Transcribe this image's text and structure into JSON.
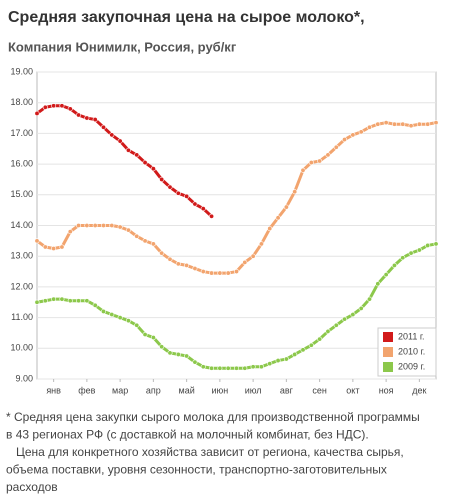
{
  "chart_data": {
    "type": "line",
    "title": "Средняя закупочная цена на сырое молоко*,",
    "subtitle": "Компания Юнимилк, Россия, руб/кг",
    "x": [
      0,
      0.25,
      0.5,
      0.75,
      1,
      1.25,
      1.5,
      1.75,
      2,
      2.25,
      2.5,
      2.75,
      3,
      3.25,
      3.5,
      3.75,
      4,
      4.25,
      4.5,
      4.75,
      5,
      5.25,
      5.5,
      5.75,
      6,
      6.25,
      6.5,
      6.75,
      7,
      7.25,
      7.5,
      7.75,
      8,
      8.25,
      8.5,
      8.75,
      9,
      9.25,
      9.5,
      9.75,
      10,
      10.25,
      10.5,
      10.75,
      11,
      11.25,
      11.5,
      11.75,
      12
    ],
    "xlim": [
      0,
      12
    ],
    "xticks": [
      {
        "value": 0.5,
        "label": "янв"
      },
      {
        "value": 1.5,
        "label": "фев"
      },
      {
        "value": 2.5,
        "label": "мар"
      },
      {
        "value": 3.5,
        "label": "апр"
      },
      {
        "value": 4.5,
        "label": "май"
      },
      {
        "value": 5.5,
        "label": "июн"
      },
      {
        "value": 6.5,
        "label": "июл"
      },
      {
        "value": 7.5,
        "label": "авг"
      },
      {
        "value": 8.5,
        "label": "сен"
      },
      {
        "value": 9.5,
        "label": "окт"
      },
      {
        "value": 10.5,
        "label": "ноя"
      },
      {
        "value": 11.5,
        "label": "дек"
      }
    ],
    "ylim": [
      9,
      19
    ],
    "yticks": [
      {
        "value": 9,
        "label": "9.00"
      },
      {
        "value": 10,
        "label": "10.00"
      },
      {
        "value": 11,
        "label": "11.00"
      },
      {
        "value": 12,
        "label": "12.00"
      },
      {
        "value": 13,
        "label": "13.00"
      },
      {
        "value": 14,
        "label": "14.00"
      },
      {
        "value": 15,
        "label": "15.00"
      },
      {
        "value": 16,
        "label": "16.00"
      },
      {
        "value": 17,
        "label": "17.00"
      },
      {
        "value": 18,
        "label": "18.00"
      },
      {
        "value": 19,
        "label": "19.00"
      }
    ],
    "grid": true,
    "legend": "lower-right",
    "series": [
      {
        "name": "2011 г.",
        "color": "#d11a1a",
        "values": [
          17.65,
          17.85,
          17.9,
          17.9,
          17.8,
          17.6,
          17.5,
          17.45,
          17.2,
          16.95,
          16.75,
          16.45,
          16.3,
          16.05,
          15.85,
          15.5,
          15.25,
          15.05,
          14.95,
          14.7,
          14.55,
          14.3,
          null,
          null,
          null,
          null,
          null,
          null,
          null,
          null,
          null,
          null,
          null,
          null,
          null,
          null,
          null,
          null,
          null,
          null,
          null,
          null,
          null,
          null,
          null,
          null,
          null,
          null,
          null
        ]
      },
      {
        "name": "2010 г.",
        "color": "#f2a46e",
        "values": [
          13.5,
          13.3,
          13.25,
          13.3,
          13.8,
          14.0,
          14.0,
          14.0,
          14.0,
          14.0,
          13.95,
          13.85,
          13.65,
          13.5,
          13.4,
          13.1,
          12.9,
          12.75,
          12.7,
          12.6,
          12.5,
          12.45,
          12.45,
          12.45,
          12.5,
          12.8,
          13.0,
          13.4,
          13.9,
          14.25,
          14.6,
          15.1,
          15.8,
          16.05,
          16.1,
          16.3,
          16.55,
          16.8,
          16.95,
          17.05,
          17.2,
          17.3,
          17.35,
          17.3,
          17.3,
          17.25,
          17.3,
          17.3,
          17.35
        ]
      },
      {
        "name": "2009 г.",
        "color": "#8cc84b",
        "values": [
          11.5,
          11.55,
          11.6,
          11.6,
          11.55,
          11.55,
          11.55,
          11.4,
          11.2,
          11.1,
          11.0,
          10.9,
          10.75,
          10.45,
          10.35,
          10.05,
          9.85,
          9.8,
          9.75,
          9.55,
          9.4,
          9.35,
          9.35,
          9.35,
          9.35,
          9.35,
          9.4,
          9.4,
          9.5,
          9.6,
          9.65,
          9.8,
          9.95,
          10.1,
          10.3,
          10.55,
          10.75,
          10.95,
          11.1,
          11.3,
          11.6,
          12.1,
          12.4,
          12.7,
          12.95,
          13.1,
          13.2,
          13.35,
          13.4
        ]
      }
    ]
  },
  "footnote": [
    "* Средняя цена закупки сырого молока для производственной программы",
    "в 43 регионах РФ (с доставкой на молочный комбинат, без НДС).",
    "   Цена для конкретного хозяйства зависит от региона, качества сырья,",
    "объема поставки, уровня сезонности, транспортно-заготовительных",
    "расходов"
  ]
}
